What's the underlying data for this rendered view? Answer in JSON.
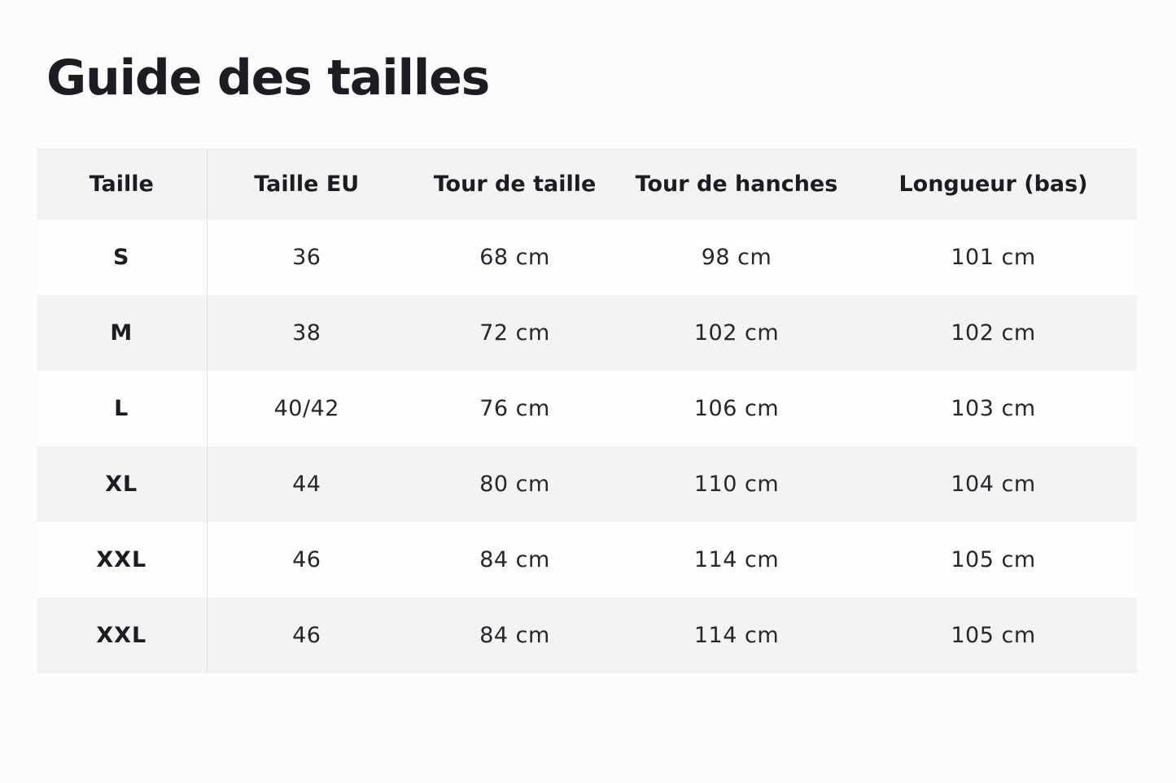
{
  "page": {
    "title": "Guide des tailles"
  },
  "table": {
    "headers": [
      "Taille",
      "Taille EU",
      "Tour de taille",
      "Tour de hanches",
      "Longueur (bas)"
    ],
    "rows": [
      [
        "S",
        "36",
        "68 cm",
        "98 cm",
        "101 cm"
      ],
      [
        "M",
        "38",
        "72 cm",
        "102 cm",
        "102 cm"
      ],
      [
        "L",
        "40/42",
        "76 cm",
        "106 cm",
        "103 cm"
      ],
      [
        "XL",
        "44",
        "80 cm",
        "110 cm",
        "104 cm"
      ],
      [
        "XXL",
        "46",
        "84 cm",
        "114 cm",
        "105 cm"
      ],
      [
        "XXL",
        "46",
        "84 cm",
        "114 cm",
        "105 cm"
      ]
    ]
  },
  "colors": {
    "background": "#fcfcfc",
    "stripe": "#f3f3f4",
    "text": "#1c1d22",
    "divider": "#e2e2e4"
  }
}
